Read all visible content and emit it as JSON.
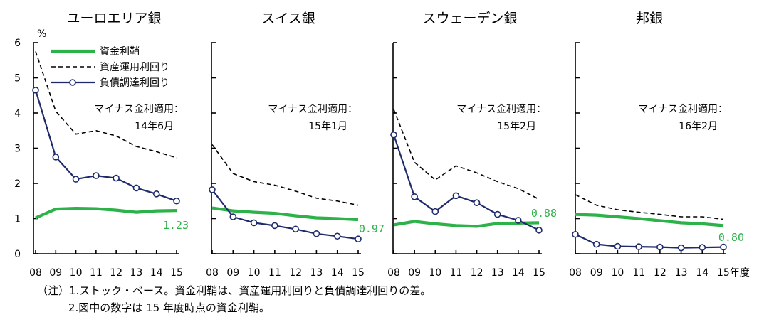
{
  "chart_data": [
    {
      "type": "line",
      "title": "ユーロエリア銀",
      "unit": "%",
      "x": [
        "08",
        "09",
        "10",
        "11",
        "12",
        "13",
        "14",
        "15"
      ],
      "ylim": [
        0,
        6
      ],
      "yticks": [
        "0",
        "1",
        "2",
        "3",
        "4",
        "5",
        "6"
      ],
      "annotation": [
        "マイナス金利適用：",
        "14年6月"
      ],
      "end_label": "1.23",
      "series": [
        {
          "name": "資金利鞘",
          "values": [
            1.02,
            1.27,
            1.29,
            1.28,
            1.24,
            1.18,
            1.22,
            1.23
          ]
        },
        {
          "name": "資産運用利回り",
          "values": [
            5.75,
            4.05,
            3.4,
            3.5,
            3.35,
            3.05,
            2.9,
            2.73
          ]
        },
        {
          "name": "負債調達利回り",
          "values": [
            4.65,
            2.75,
            2.12,
            2.22,
            2.15,
            1.87,
            1.7,
            1.5
          ]
        }
      ]
    },
    {
      "type": "line",
      "title": "スイス銀",
      "x": [
        "08",
        "09",
        "10",
        "11",
        "12",
        "13",
        "14",
        "15"
      ],
      "ylim": [
        0,
        6
      ],
      "annotation": [
        "マイナス金利適用：",
        "15年1月"
      ],
      "end_label": "0.97",
      "series": [
        {
          "name": "資金利鞘",
          "values": [
            1.3,
            1.22,
            1.18,
            1.15,
            1.08,
            1.02,
            1.0,
            0.97
          ]
        },
        {
          "name": "資産運用利回り",
          "values": [
            3.1,
            2.28,
            2.05,
            1.95,
            1.78,
            1.58,
            1.5,
            1.38
          ]
        },
        {
          "name": "負債調達利回り",
          "values": [
            1.82,
            1.05,
            0.88,
            0.8,
            0.7,
            0.57,
            0.5,
            0.42
          ]
        }
      ]
    },
    {
      "type": "line",
      "title": "スウェーデン銀",
      "x": [
        "08",
        "09",
        "10",
        "11",
        "12",
        "13",
        "14",
        "15"
      ],
      "ylim": [
        0,
        6
      ],
      "annotation": [
        "マイナス金利適用：",
        "15年2月"
      ],
      "end_label": "0.88",
      "series": [
        {
          "name": "資金利鞘",
          "values": [
            0.82,
            0.92,
            0.85,
            0.8,
            0.78,
            0.86,
            0.87,
            0.88
          ]
        },
        {
          "name": "資産運用利回り",
          "values": [
            4.1,
            2.6,
            2.1,
            2.5,
            2.3,
            2.05,
            1.85,
            1.55
          ]
        },
        {
          "name": "負債調達利回り",
          "values": [
            3.38,
            1.62,
            1.2,
            1.65,
            1.45,
            1.12,
            0.95,
            0.67
          ]
        }
      ]
    },
    {
      "type": "line",
      "title": "邦銀",
      "x": [
        "08",
        "09",
        "10",
        "11",
        "12",
        "13",
        "14",
        "15年度"
      ],
      "ylim": [
        0,
        6
      ],
      "annotation": [
        "マイナス金利適用：",
        "16年2月"
      ],
      "end_label": "0.80",
      "series": [
        {
          "name": "資金利鞘",
          "values": [
            1.12,
            1.1,
            1.05,
            1.0,
            0.94,
            0.88,
            0.85,
            0.8
          ]
        },
        {
          "name": "資産運用利回り",
          "values": [
            1.68,
            1.38,
            1.25,
            1.18,
            1.12,
            1.05,
            1.05,
            0.98
          ]
        },
        {
          "name": "負債調達利回り",
          "values": [
            0.55,
            0.27,
            0.21,
            0.2,
            0.19,
            0.17,
            0.18,
            0.19
          ]
        }
      ]
    }
  ],
  "legend": [
    "資金利鞘",
    "資産運用利回り",
    "負債調達利回り"
  ],
  "colors": {
    "margin": "#2db24a",
    "asset": "#000000",
    "liability": "#1f2a6b"
  },
  "notes": {
    "line1": "（注）1.ストック・ベース。資金利鞘は、資産運用利回りと負債調達利回りの差。",
    "line2": "2.図中の数字は 15 年度時点の資金利鞘。"
  }
}
